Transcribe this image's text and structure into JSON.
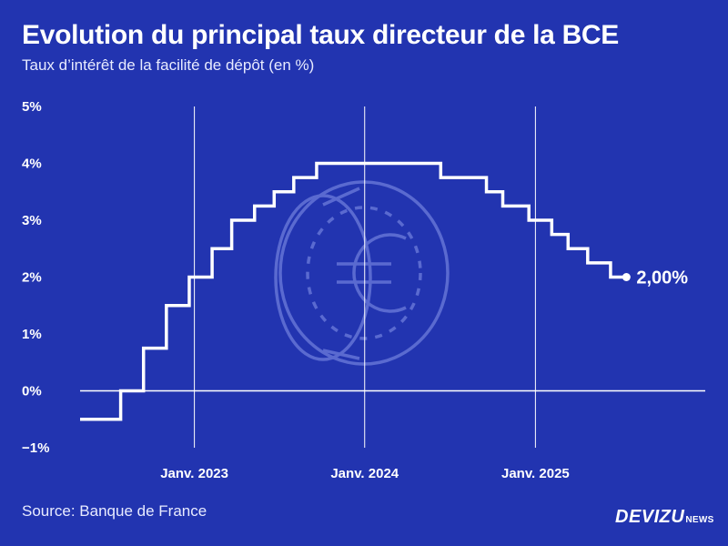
{
  "header": {
    "title": "Evolution du principal taux directeur de la BCE",
    "subtitle": "Taux d’intérêt de la facilité de dépôt (en %)"
  },
  "footer": {
    "source": "Source: Banque de France",
    "brand_main": "DEVIZU",
    "brand_sub": "NEWS"
  },
  "colors": {
    "background": "#2234b0",
    "line": "#ffffff",
    "watermark": "#5a6ad0"
  },
  "watermark_icon": "euro-coin-icon",
  "chart_data": {
    "type": "line",
    "step": true,
    "title": "Evolution du principal taux directeur de la BCE",
    "subtitle": "Taux d’intérêt de la facilité de dépôt (en %)",
    "ylabel": "",
    "xlabel": "",
    "ylim": [
      -1,
      5
    ],
    "yticks": [
      -1,
      0,
      1,
      2,
      3,
      4,
      5
    ],
    "ytick_labels": [
      "−1%",
      "0%",
      "1%",
      "2%",
      "3%",
      "4%",
      "5%"
    ],
    "xlim": [
      "2022-05-01",
      "2025-12-31"
    ],
    "xticks": [
      "2023-01-01",
      "2024-01-01",
      "2025-01-01"
    ],
    "xtick_labels": [
      "Janv. 2023",
      "Janv. 2024",
      "Janv. 2025"
    ],
    "grid": "vertical at x ticks",
    "series": [
      {
        "name": "",
        "x": [
          "2022-05-01",
          "2022-07-27",
          "2022-09-14",
          "2022-11-02",
          "2022-12-21",
          "2023-02-08",
          "2023-03-22",
          "2023-05-10",
          "2023-06-21",
          "2023-08-02",
          "2023-09-20",
          "2024-06-12",
          "2024-09-18",
          "2024-10-23",
          "2024-12-18",
          "2025-02-05",
          "2025-03-12",
          "2025-04-23",
          "2025-06-11",
          "2025-07-15"
        ],
        "y": [
          -0.5,
          0,
          0.75,
          1.5,
          2,
          2.5,
          3,
          3.25,
          3.5,
          3.75,
          4,
          3.75,
          3.5,
          3.25,
          3,
          2.75,
          2.5,
          2.25,
          2,
          2
        ]
      }
    ],
    "annotations": [
      {
        "x": "2025-07-15",
        "y": 2,
        "text": "2,00%"
      }
    ]
  }
}
